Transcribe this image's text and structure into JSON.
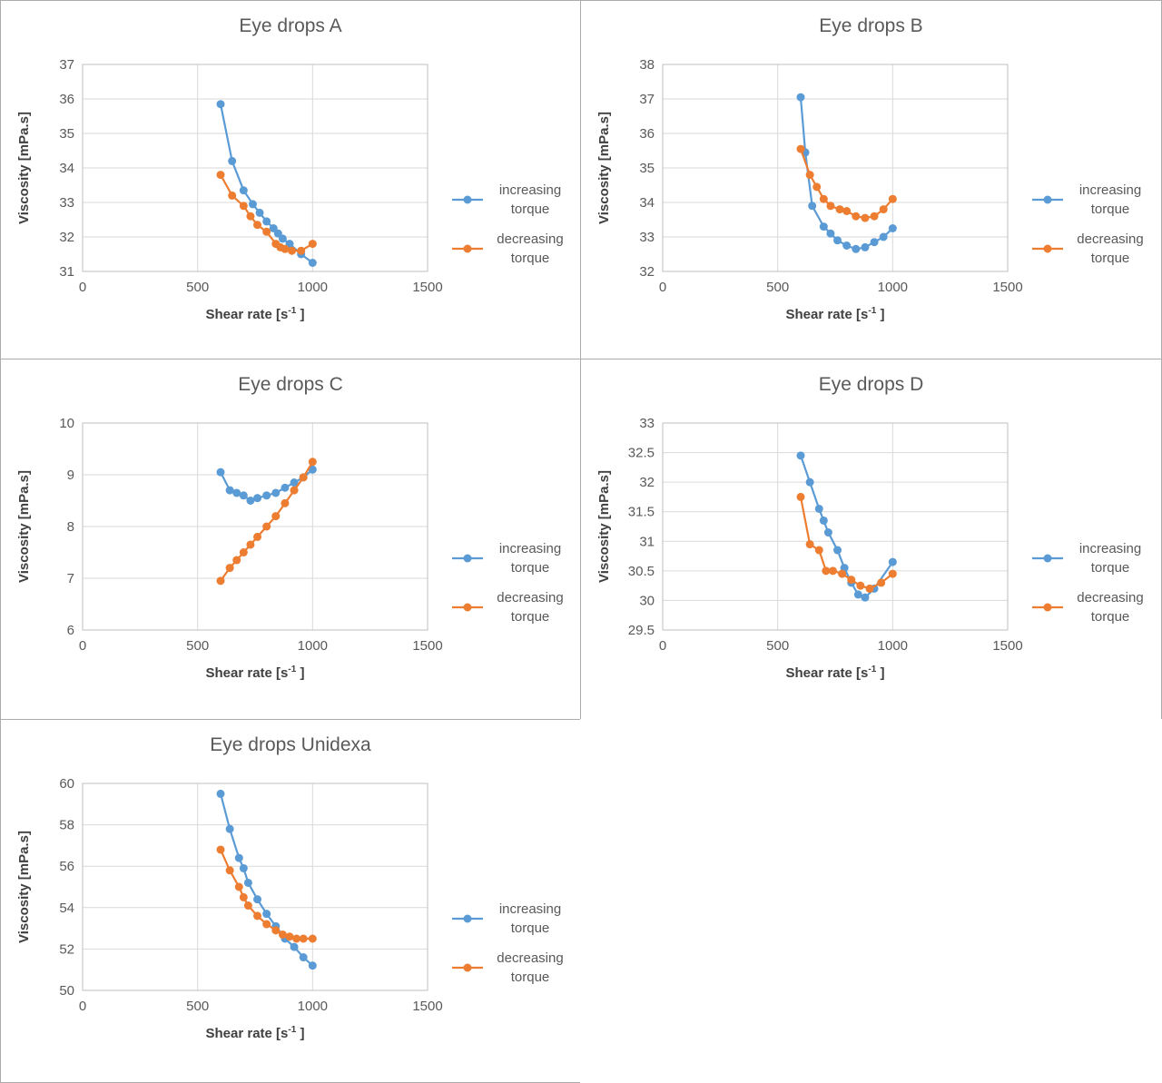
{
  "legend": {
    "increasing": "increasing torque",
    "decreasing": "decreasing torque"
  },
  "colors": {
    "increasing": "#5B9BD5",
    "decreasing": "#ED7D31",
    "gridline": "#D9D9D9",
    "plot_border": "#BFBFBF",
    "axis_text": "#595959",
    "title_text": "#595959"
  },
  "axis": {
    "xlabel_main": "Shear rate [s",
    "xlabel_sup": "-1",
    "xlabel_close": " ]",
    "ylabel": "Viscosity [mPa.s]"
  },
  "chart_data": [
    {
      "type": "line",
      "title": "Eye drops A",
      "xlabel": "Shear rate [s⁻¹ ]",
      "ylabel": "Viscosity [mPa.s]",
      "xlim": [
        0,
        1500
      ],
      "ylim": [
        31,
        37
      ],
      "xticks": [
        0,
        500,
        1000,
        1500
      ],
      "yticks": [
        31,
        32,
        33,
        34,
        35,
        36,
        37
      ],
      "grid": true,
      "legend_position": "right",
      "series": [
        {
          "name": "increasing torque",
          "color_key": "increasing",
          "x": [
            600,
            650,
            700,
            740,
            770,
            800,
            830,
            850,
            870,
            900,
            950,
            1000
          ],
          "y": [
            35.85,
            34.2,
            33.35,
            32.95,
            32.7,
            32.45,
            32.25,
            32.1,
            31.95,
            31.8,
            31.5,
            31.25
          ]
        },
        {
          "name": "decreasing torque",
          "color_key": "decreasing",
          "x": [
            600,
            650,
            700,
            730,
            760,
            800,
            840,
            860,
            880,
            910,
            950,
            1000
          ],
          "y": [
            33.8,
            33.2,
            32.9,
            32.6,
            32.35,
            32.15,
            31.8,
            31.7,
            31.65,
            31.6,
            31.6,
            31.8
          ]
        }
      ]
    },
    {
      "type": "line",
      "title": "Eye drops B",
      "xlabel": "Shear rate [s⁻¹ ]",
      "ylabel": "Viscosity [mPa.s]",
      "xlim": [
        0,
        1500
      ],
      "ylim": [
        32,
        38
      ],
      "xticks": [
        0,
        500,
        1000,
        1500
      ],
      "yticks": [
        32,
        33,
        34,
        35,
        36,
        37,
        38
      ],
      "grid": true,
      "legend_position": "right",
      "series": [
        {
          "name": "increasing torque",
          "color_key": "increasing",
          "x": [
            600,
            620,
            650,
            700,
            730,
            760,
            800,
            840,
            880,
            920,
            960,
            1000
          ],
          "y": [
            37.05,
            35.45,
            33.9,
            33.3,
            33.1,
            32.9,
            32.75,
            32.65,
            32.7,
            32.85,
            33.0,
            33.25
          ]
        },
        {
          "name": "decreasing torque",
          "color_key": "decreasing",
          "x": [
            600,
            640,
            670,
            700,
            730,
            770,
            800,
            840,
            880,
            920,
            960,
            1000
          ],
          "y": [
            35.55,
            34.8,
            34.45,
            34.1,
            33.9,
            33.8,
            33.75,
            33.6,
            33.55,
            33.6,
            33.8,
            34.1
          ]
        }
      ]
    },
    {
      "type": "line",
      "title": "Eye drops C",
      "xlabel": "Shear rate [s⁻¹ ]",
      "ylabel": "Viscosity [mPa.s]",
      "xlim": [
        0,
        1500
      ],
      "ylim": [
        6,
        10
      ],
      "xticks": [
        0,
        500,
        1000,
        1500
      ],
      "yticks": [
        6,
        7,
        8,
        9,
        10
      ],
      "grid": true,
      "legend_position": "right",
      "series": [
        {
          "name": "increasing torque",
          "color_key": "increasing",
          "x": [
            600,
            640,
            670,
            700,
            730,
            760,
            800,
            840,
            880,
            920,
            960,
            1000
          ],
          "y": [
            9.05,
            8.7,
            8.65,
            8.6,
            8.5,
            8.55,
            8.6,
            8.65,
            8.75,
            8.85,
            8.95,
            9.1
          ]
        },
        {
          "name": "decreasing torque",
          "color_key": "decreasing",
          "x": [
            600,
            640,
            670,
            700,
            730,
            760,
            800,
            840,
            880,
            920,
            960,
            1000
          ],
          "y": [
            6.95,
            7.2,
            7.35,
            7.5,
            7.65,
            7.8,
            8.0,
            8.2,
            8.45,
            8.7,
            8.95,
            9.25
          ]
        }
      ]
    },
    {
      "type": "line",
      "title": "Eye drops D",
      "xlabel": "Shear rate [s⁻¹ ]",
      "ylabel": "Viscosity [mPa.s]",
      "xlim": [
        0,
        1500
      ],
      "ylim": [
        29.5,
        33
      ],
      "xticks": [
        0,
        500,
        1000,
        1500
      ],
      "yticks": [
        29.5,
        30,
        30.5,
        31,
        31.5,
        32,
        32.5,
        33
      ],
      "grid": true,
      "legend_position": "right",
      "series": [
        {
          "name": "increasing torque",
          "color_key": "increasing",
          "x": [
            600,
            640,
            680,
            700,
            720,
            760,
            790,
            820,
            850,
            880,
            920,
            1000
          ],
          "y": [
            32.45,
            32.0,
            31.55,
            31.35,
            31.15,
            30.85,
            30.55,
            30.3,
            30.1,
            30.05,
            30.2,
            30.65
          ]
        },
        {
          "name": "decreasing torque",
          "color_key": "decreasing",
          "x": [
            600,
            640,
            680,
            710,
            740,
            780,
            820,
            860,
            900,
            950,
            1000
          ],
          "y": [
            31.75,
            30.95,
            30.85,
            30.5,
            30.5,
            30.45,
            30.35,
            30.25,
            30.2,
            30.3,
            30.45
          ]
        }
      ]
    },
    {
      "type": "line",
      "title": "Eye drops Unidexa",
      "xlabel": "Shear rate [s⁻¹ ]",
      "ylabel": "Viscosity [mPa.s]",
      "xlim": [
        0,
        1500
      ],
      "ylim": [
        50,
        60
      ],
      "xticks": [
        0,
        500,
        1000,
        1500
      ],
      "yticks": [
        50,
        52,
        54,
        56,
        58,
        60
      ],
      "grid": true,
      "legend_position": "right",
      "series": [
        {
          "name": "increasing torque",
          "color_key": "increasing",
          "x": [
            600,
            640,
            680,
            700,
            720,
            760,
            800,
            840,
            880,
            920,
            960,
            1000
          ],
          "y": [
            59.5,
            57.8,
            56.4,
            55.9,
            55.2,
            54.4,
            53.7,
            53.1,
            52.5,
            52.1,
            51.6,
            51.2
          ]
        },
        {
          "name": "decreasing torque",
          "color_key": "decreasing",
          "x": [
            600,
            640,
            680,
            700,
            720,
            760,
            800,
            840,
            870,
            900,
            930,
            960,
            1000
          ],
          "y": [
            56.8,
            55.8,
            55.0,
            54.5,
            54.1,
            53.6,
            53.2,
            52.9,
            52.7,
            52.6,
            52.5,
            52.5,
            52.5
          ]
        }
      ]
    }
  ]
}
